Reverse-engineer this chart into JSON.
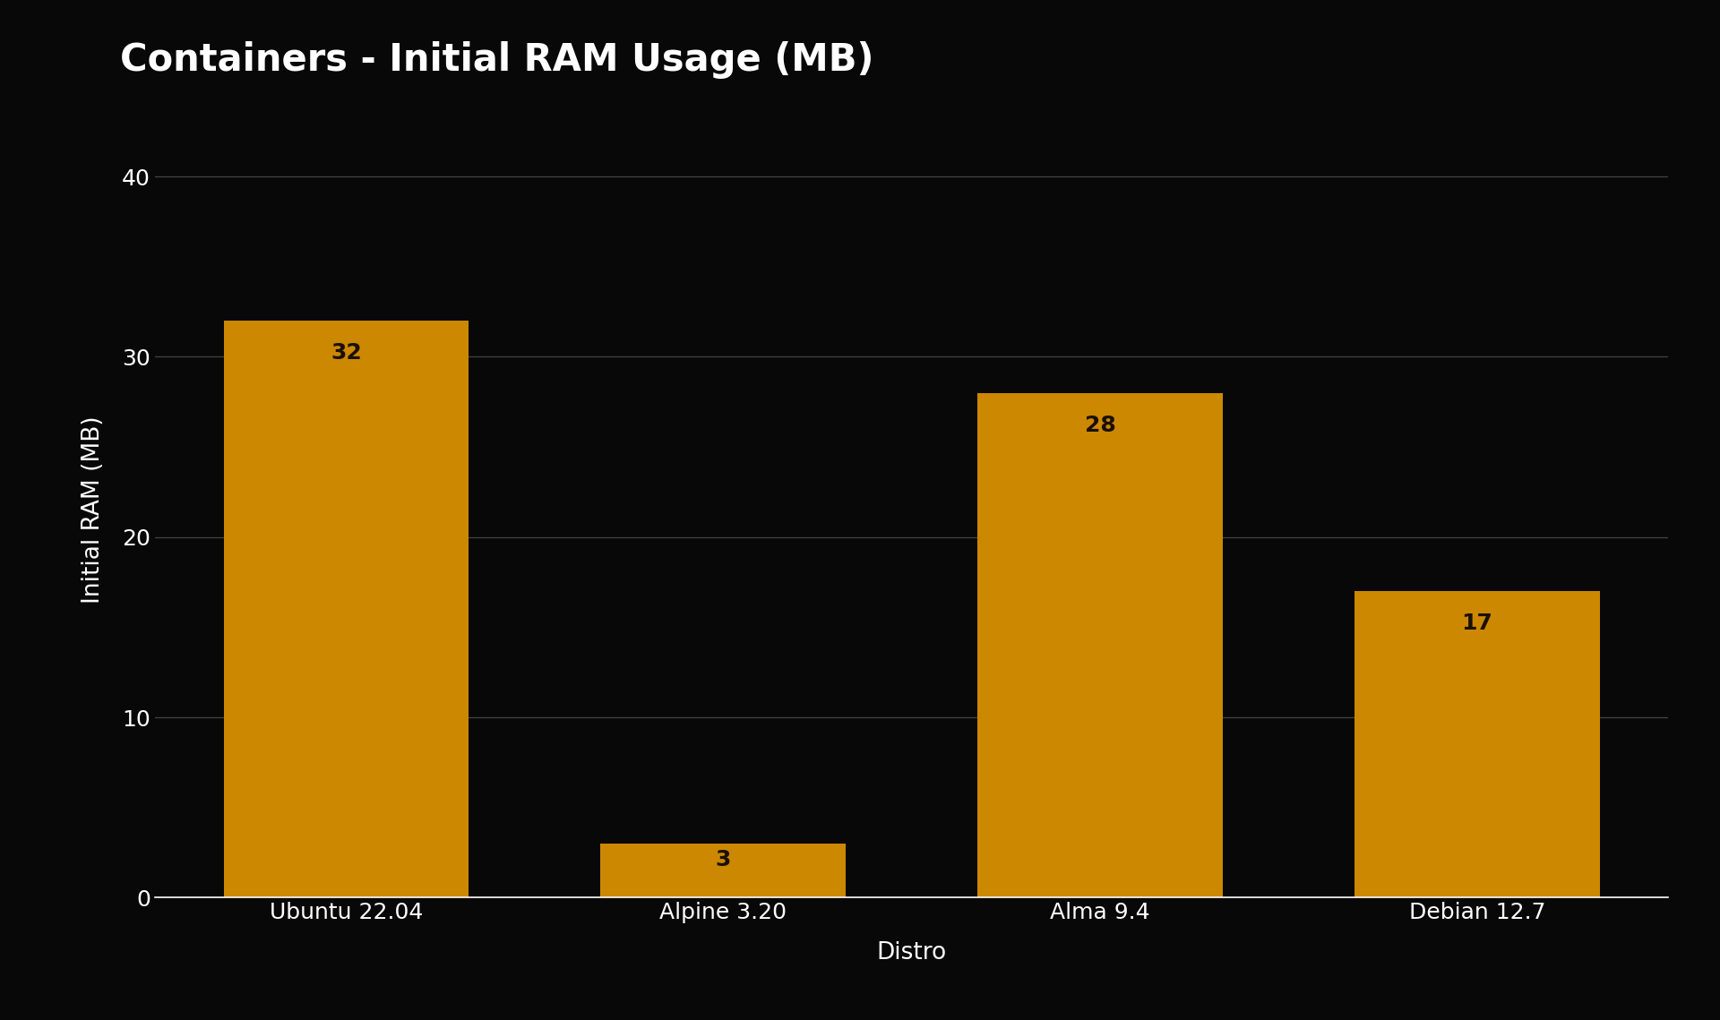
{
  "title": "Containers - Initial RAM Usage (MB)",
  "categories": [
    "Ubuntu 22.04",
    "Alpine 3.20",
    "Alma 9.4",
    "Debian 12.7"
  ],
  "values": [
    32,
    3,
    28,
    17
  ],
  "bar_color": "#CC8800",
  "xlabel": "Distro",
  "ylabel": "Initial RAM (MB)",
  "ylim": [
    0,
    43
  ],
  "yticks": [
    0,
    10,
    20,
    30,
    40
  ],
  "background_color": "#080808",
  "text_color": "#ffffff",
  "grid_color": "#444444",
  "title_fontsize": 30,
  "label_fontsize": 19,
  "tick_fontsize": 18,
  "bar_label_fontsize": 18,
  "bar_label_color": "#1a1005",
  "bar_width": 0.65
}
